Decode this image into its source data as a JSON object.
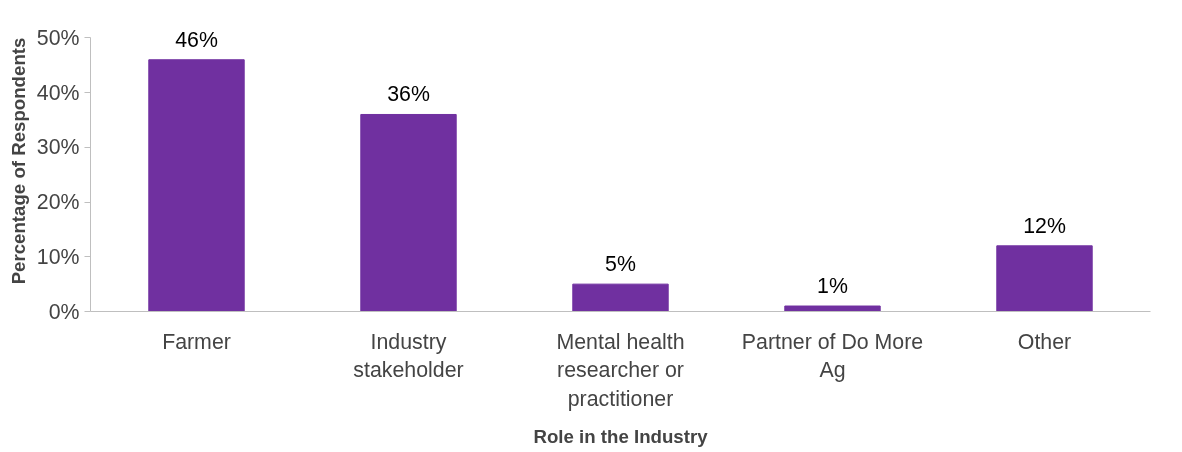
{
  "chart_data": {
    "type": "bar",
    "xlabel": "Role in the Industry",
    "ylabel": "Percentage of Respondents",
    "categories": [
      "Farmer",
      "Industry stakeholder",
      "Mental health researcher or practitioner",
      "Partner of Do More Ag",
      "Other"
    ],
    "values": [
      46,
      36,
      5,
      1,
      12
    ],
    "color": "#7030a0",
    "value_labels": [
      "46%",
      "36%",
      "5%",
      "1%",
      "12%"
    ],
    "ylim": [
      0,
      50
    ],
    "yticks": [
      {
        "value": 0,
        "label": "0%"
      },
      {
        "value": 10,
        "label": "10%"
      },
      {
        "value": 20,
        "label": "20%"
      },
      {
        "value": 30,
        "label": "30%"
      },
      {
        "value": 40,
        "label": "40%"
      },
      {
        "value": 50,
        "label": "50%"
      }
    ],
    "grid": false
  }
}
